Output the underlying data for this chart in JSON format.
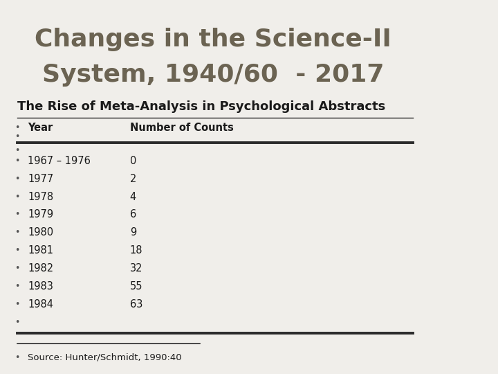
{
  "title_line1": "Changes in the Science-II",
  "title_line2": "System, 1940/60  - 2017",
  "subtitle": "The Rise of Meta-Analysis in Psychological Abstracts",
  "col1_header": "Year",
  "col2_header": "Number of Counts",
  "rows": [
    [
      "1967 – 1976",
      "0"
    ],
    [
      "1977",
      "2"
    ],
    [
      "1978",
      "4"
    ],
    [
      "1979",
      "6"
    ],
    [
      "1980",
      "9"
    ],
    [
      "1981",
      "18"
    ],
    [
      "1982",
      "32"
    ],
    [
      "1983",
      "55"
    ],
    [
      "1984",
      "63"
    ]
  ],
  "source": "Source: Hunter/Schmidt, 1990:40",
  "bg_color": "#f0eeea",
  "right_panel_top_color": "#6b6352",
  "right_panel_mid_color": "#b5aa8e",
  "right_panel_bot_color": "#6b6352",
  "title_color": "#6b6352",
  "text_color": "#1a1a1a",
  "bullet_color": "#555555",
  "line_color": "#2a2a2a",
  "title_fontsize": 26,
  "subtitle_fontsize": 13,
  "body_fontsize": 10.5
}
